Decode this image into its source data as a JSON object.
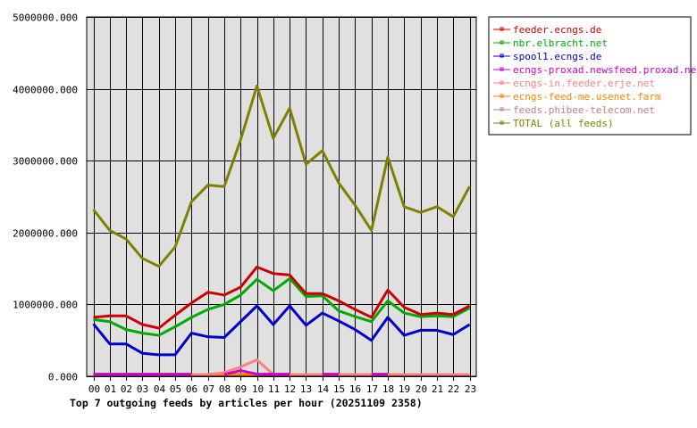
{
  "chart_data": {
    "type": "line",
    "title": "Top 7 outgoing feeds by articles per hour (20251109 2358)",
    "xlabel": "",
    "ylabel": "",
    "ylim": [
      0,
      5000000
    ],
    "yticks": [
      "0.000",
      "1000000.000",
      "2000000.000",
      "3000000.000",
      "4000000.000",
      "5000000.000"
    ],
    "ytick_values": [
      0,
      1000000,
      2000000,
      3000000,
      4000000,
      5000000
    ],
    "grid": true,
    "legend_position": "top-right outside",
    "categories": [
      "00",
      "01",
      "02",
      "03",
      "04",
      "05",
      "06",
      "07",
      "08",
      "09",
      "10",
      "11",
      "12",
      "13",
      "14",
      "15",
      "16",
      "17",
      "18",
      "19",
      "20",
      "21",
      "22",
      "23"
    ],
    "series": [
      {
        "name": "feeder.ecngs.de",
        "color": "#cc0000",
        "values": [
          820000,
          840000,
          840000,
          720000,
          670000,
          850000,
          1020000,
          1170000,
          1130000,
          1240000,
          1520000,
          1430000,
          1410000,
          1150000,
          1150000,
          1050000,
          930000,
          820000,
          1200000,
          960000,
          860000,
          880000,
          860000,
          980000
        ]
      },
      {
        "name": "nbr.elbracht.net",
        "color": "#00aa00",
        "values": [
          790000,
          760000,
          650000,
          600000,
          570000,
          690000,
          820000,
          930000,
          1000000,
          1130000,
          1350000,
          1190000,
          1360000,
          1110000,
          1120000,
          910000,
          830000,
          760000,
          1050000,
          880000,
          830000,
          840000,
          830000,
          950000
        ]
      },
      {
        "name": "spool1.ecngs.de",
        "color": "#0000cc",
        "values": [
          730000,
          450000,
          450000,
          320000,
          300000,
          300000,
          600000,
          550000,
          540000,
          760000,
          980000,
          720000,
          980000,
          710000,
          880000,
          770000,
          650000,
          500000,
          820000,
          570000,
          640000,
          640000,
          580000,
          720000
        ]
      },
      {
        "name": "ecngs-proxad.newsfeed.proxad.net",
        "color": "#cc00cc",
        "values": [
          30000,
          30000,
          30000,
          30000,
          30000,
          30000,
          30000,
          null,
          0,
          80000,
          30000,
          30000,
          30000,
          null,
          30000,
          30000,
          null,
          30000,
          30000,
          null,
          null,
          null,
          30000,
          null
        ]
      },
      {
        "name": "ecngs-in.feeder.erje.net",
        "color": "#ff8080",
        "values": [
          0,
          0,
          0,
          0,
          0,
          0,
          0,
          0,
          50000,
          130000,
          230000,
          0,
          0,
          0,
          0,
          0,
          0,
          0,
          0,
          0,
          0,
          0,
          0,
          0
        ]
      },
      {
        "name": "ecngs-feed-me.usenet.farm",
        "color": "#ff8000",
        "values": [
          0,
          0,
          0,
          0,
          0,
          0,
          0,
          0,
          0,
          0,
          0,
          0,
          0,
          0,
          0,
          0,
          0,
          0,
          0,
          0,
          0,
          0,
          0,
          0
        ]
      },
      {
        "name": "feeds.phibee-telecom.net",
        "color": "#c08080",
        "values": [
          0,
          0,
          0,
          0,
          0,
          0,
          0,
          0,
          0,
          0,
          0,
          0,
          0,
          0,
          0,
          0,
          0,
          0,
          0,
          0,
          0,
          0,
          0,
          0
        ]
      },
      {
        "name": "TOTAL (all feeds)",
        "color": "#808000",
        "values": [
          2320000,
          2030000,
          1910000,
          1640000,
          1530000,
          1800000,
          2430000,
          2660000,
          2640000,
          3290000,
          4040000,
          3310000,
          3730000,
          2950000,
          3140000,
          2690000,
          2380000,
          2030000,
          3050000,
          2360000,
          2280000,
          2360000,
          2220000,
          2640000
        ]
      }
    ]
  }
}
